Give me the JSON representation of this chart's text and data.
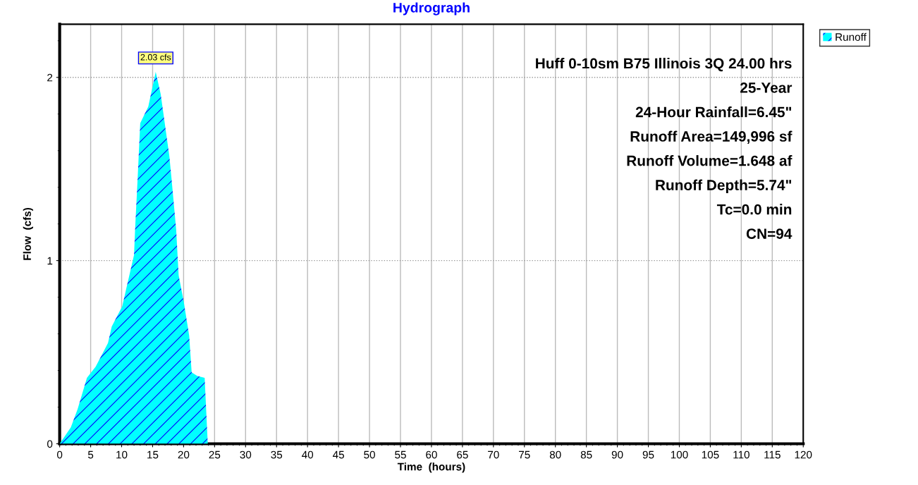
{
  "chart_data": {
    "type": "area",
    "title": "Hydrograph",
    "xlabel": "Time  (hours)",
    "ylabel": "Flow  (cfs)",
    "x": [
      0,
      1.8,
      2.9,
      4.4,
      5.8,
      7.8,
      8.4,
      10.1,
      10.7,
      12.0,
      12.2,
      12.6,
      13.0,
      14.3,
      15.5,
      16.3,
      17.7,
      18.1,
      18.8,
      19.2,
      20.0,
      20.9,
      21.3,
      22.2,
      23.4,
      23.9,
      120
    ],
    "series": [
      {
        "name": "Runoff",
        "color": "#00ffff",
        "values": [
          0,
          0.09,
          0.19,
          0.36,
          0.42,
          0.55,
          0.64,
          0.75,
          0.84,
          1.03,
          1.19,
          1.46,
          1.75,
          1.84,
          2.03,
          1.91,
          1.57,
          1.43,
          1.17,
          0.92,
          0.78,
          0.59,
          0.39,
          0.37,
          0.36,
          0,
          0
        ]
      }
    ],
    "xlim": [
      0,
      120
    ],
    "xticks": [
      0,
      5,
      10,
      15,
      20,
      25,
      30,
      35,
      40,
      45,
      50,
      55,
      60,
      65,
      70,
      75,
      80,
      85,
      90,
      95,
      100,
      105,
      110,
      115,
      120
    ],
    "ylim": [
      0,
      2.29
    ],
    "yticks": [
      0,
      1,
      2
    ],
    "grid": true,
    "legend": "top right",
    "annotations": [
      {
        "text": "2.03 cfs",
        "x": 15.5,
        "y": 2.03
      },
      "Huff 0-10sm B75 Illinois 3Q 24.00 hrs",
      "25-Year",
      "24-Hour Rainfall=6.45\"",
      "Runoff Area=149,996 sf",
      "Runoff Volume=1.648 af",
      "Runoff Depth=5.74\"",
      "Tc=0.0 min",
      "CN=94"
    ]
  }
}
